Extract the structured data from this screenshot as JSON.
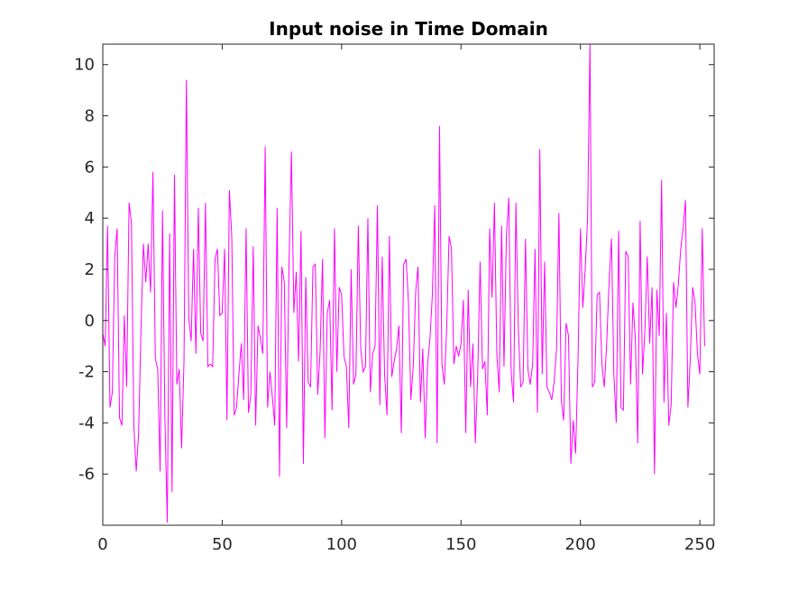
{
  "chart_data": {
    "type": "line",
    "title": "Input noise in Time Domain",
    "xlabel": "",
    "ylabel": "",
    "xlim": [
      0,
      256
    ],
    "ylim": [
      -8,
      10.8
    ],
    "xticks": [
      0,
      50,
      100,
      150,
      200,
      250
    ],
    "yticks": [
      -6,
      -4,
      -2,
      0,
      2,
      4,
      6,
      8,
      10
    ],
    "grid": false,
    "line_color": "#ff00ff",
    "series": [
      {
        "x_start": 0,
        "x_step": 1,
        "values": [
          -0.5,
          -1.0,
          3.7,
          -3.4,
          -2.8,
          2.5,
          3.6,
          -3.8,
          -4.1,
          0.2,
          -2.6,
          4.6,
          3.8,
          -4.1,
          -5.9,
          -4.4,
          -0.3,
          3.0,
          1.5,
          3.0,
          1.1,
          5.8,
          -1.5,
          -1.9,
          -5.9,
          4.3,
          -3.8,
          -7.9,
          3.4,
          -6.7,
          5.7,
          -2.5,
          -1.9,
          -5.0,
          -1.6,
          9.4,
          0.1,
          -0.8,
          2.8,
          -1.3,
          4.4,
          -0.5,
          -0.8,
          4.6,
          -1.8,
          -1.7,
          -1.8,
          2.4,
          2.8,
          0.2,
          0.3,
          2.8,
          -3.9,
          5.1,
          3.3,
          -3.7,
          -3.4,
          -2.1,
          -0.9,
          -3.1,
          3.6,
          -3.6,
          -2.9,
          2.9,
          -4.1,
          -0.2,
          -0.7,
          -1.3,
          6.8,
          -3.4,
          -2.0,
          -3.0,
          -4.1,
          4.4,
          -6.1,
          2.1,
          1.5,
          -4.2,
          2.3,
          6.6,
          0.3,
          1.9,
          -1.6,
          3.5,
          -5.6,
          1.7,
          -2.4,
          -2.6,
          2.1,
          2.2,
          -2.9,
          -1.2,
          2.4,
          -4.6,
          0.3,
          0.8,
          -3.5,
          3.6,
          -2.0,
          1.3,
          1.0,
          -1.4,
          -1.8,
          -4.2,
          2.0,
          -2.5,
          -2.1,
          3.7,
          -1.1,
          -2.0,
          -1.8,
          4.0,
          -2.8,
          -1.3,
          -1.0,
          4.5,
          -3.3,
          2.5,
          -2.1,
          -3.7,
          3.3,
          -2.2,
          -1.6,
          -1.1,
          -0.2,
          -4.4,
          2.2,
          2.4,
          0.7,
          -3.1,
          -1.8,
          1.1,
          2.1,
          -3.2,
          -1.1,
          -4.6,
          -1.7,
          -0.7,
          1.0,
          4.5,
          -4.8,
          7.6,
          -1.7,
          -2.5,
          -0.3,
          3.3,
          2.8,
          -1.7,
          -1.0,
          -1.4,
          -0.9,
          0.8,
          -4.4,
          1.2,
          -2.6,
          -0.9,
          -4.8,
          -2.1,
          2.3,
          -1.9,
          -1.6,
          -3.7,
          3.6,
          0.9,
          4.6,
          -1.3,
          -2.8,
          3.7,
          -1.8,
          3.3,
          4.8,
          -2.0,
          -3.2,
          4.6,
          -0.3,
          -2.6,
          -2.4,
          3.2,
          -1.9,
          -2.5,
          -1.7,
          2.8,
          -3.6,
          6.7,
          -2.1,
          2.3,
          -2.6,
          -2.8,
          -3.1,
          -2.4,
          -1.1,
          4.2,
          -3.1,
          -3.9,
          -0.1,
          -0.6,
          -5.6,
          -3.9,
          -5.2,
          -1.5,
          3.6,
          0.5,
          2.0,
          4.0,
          10.8,
          -2.6,
          -2.4,
          1.0,
          1.1,
          -1.7,
          -2.6,
          -0.9,
          1.5,
          3.2,
          -2.1,
          -4.0,
          3.5,
          -3.4,
          -3.5,
          2.7,
          2.5,
          -2.5,
          0.7,
          -0.7,
          -4.8,
          3.9,
          -2.1,
          -0.4,
          2.5,
          -0.9,
          1.3,
          -6.0,
          1.2,
          -0.6,
          5.5,
          -3.2,
          0.3,
          -4.1,
          -3.3,
          1.5,
          0.5,
          1.4,
          2.8,
          3.6,
          4.7,
          -3.4,
          -1.5,
          1.3,
          0.7,
          -1.3,
          -2.1,
          3.6,
          -1.0
        ]
      }
    ]
  }
}
